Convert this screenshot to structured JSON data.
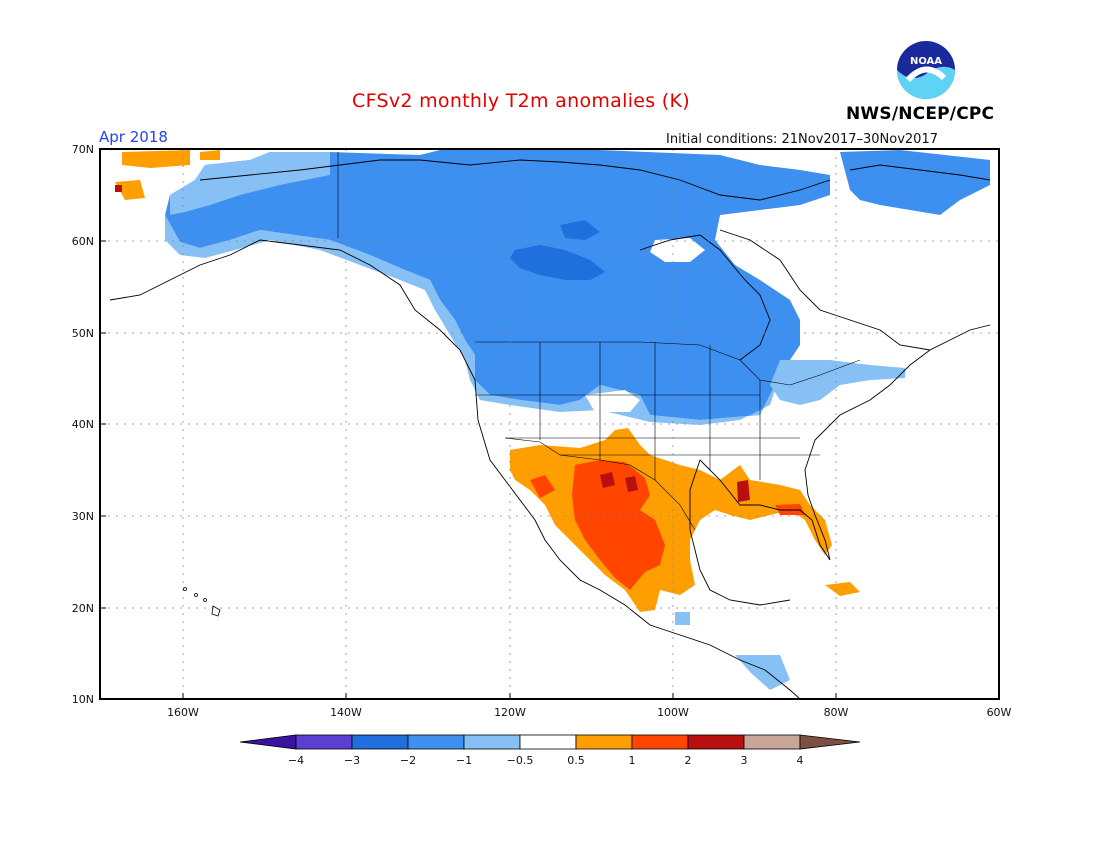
{
  "title": "CFSv2 monthly T2m anomalies (K)",
  "valid_month": "Apr 2018",
  "initial_conditions": "Initial conditions: 21Nov2017–30Nov2017",
  "agency": "NWS/NCEP/CPC",
  "logo": {
    "text": "NOAA",
    "icon": "noaa-logo"
  },
  "map": {
    "lat_ticks": [
      "70N",
      "60N",
      "50N",
      "40N",
      "30N",
      "20N",
      "10N"
    ],
    "lon_ticks": [
      "160W",
      "140W",
      "120W",
      "100W",
      "80W",
      "60W"
    ]
  },
  "colorbar": {
    "labels": [
      "−4",
      "−3",
      "−2",
      "−1",
      "−0.5",
      "0.5",
      "1",
      "2",
      "3",
      "4"
    ],
    "colors": [
      "#3a14a0",
      "#5a3fd0",
      "#1f6fdc",
      "#3d8ff0",
      "#86c0f5",
      "#ffffff",
      "#ff9e00",
      "#ff4500",
      "#b80f0f",
      "#c8a596",
      "#7d4f43"
    ]
  },
  "regions": {
    "cold": "#3d8ff0",
    "light_cold": "#86c0f5",
    "very_cold": "#1f6fdc",
    "warm": "#ff9e00",
    "hot": "#ff4500",
    "very_hot": "#b80f0f"
  }
}
